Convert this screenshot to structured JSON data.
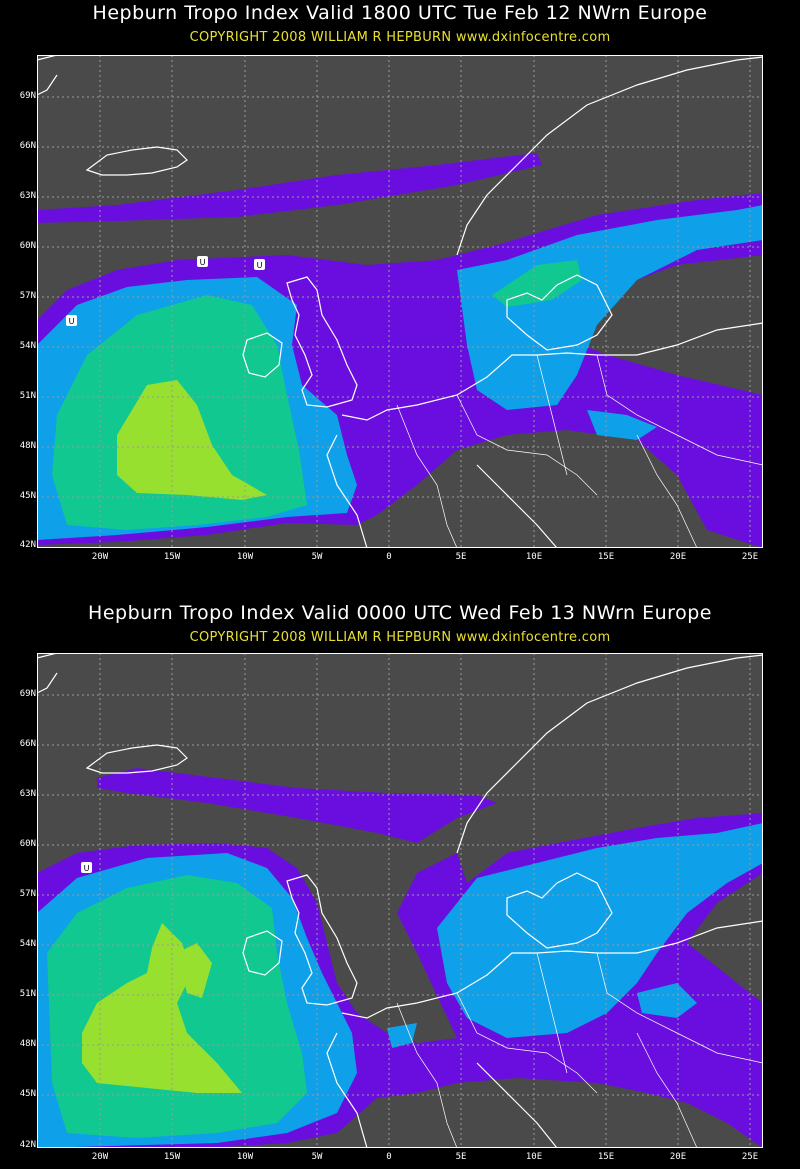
{
  "maps": [
    {
      "title": "Hepburn Tropo Index Valid 1800 UTC Tue Feb 12 NWrn Europe",
      "copyright": "COPYRIGHT 2008  WILLIAM R HEPBURN  www.dxinfocentre.com",
      "lat_labels": [
        "69N",
        "66N",
        "63N",
        "60N",
        "57N",
        "54N",
        "51N",
        "48N",
        "45N",
        "42N"
      ],
      "lon_labels": [
        "20W",
        "15W",
        "10W",
        "5W",
        "0",
        "5E",
        "10E",
        "15E",
        "20E",
        "25E"
      ],
      "markers": [
        "U",
        "U",
        "U"
      ]
    },
    {
      "title": "Hepburn Tropo Index Valid 0000 UTC Wed Feb 13 NWrn Europe",
      "copyright": "COPYRIGHT 2008  WILLIAM R HEPBURN  www.dxinfocentre.com",
      "lat_labels": [
        "69N",
        "66N",
        "63N",
        "60N",
        "57N",
        "54N",
        "51N",
        "48N",
        "45N",
        "42N"
      ],
      "lon_labels": [
        "20W",
        "15W",
        "10W",
        "5W",
        "0",
        "5E",
        "10E",
        "15E",
        "20E",
        "25E"
      ],
      "markers": [
        "U"
      ]
    }
  ],
  "colors": {
    "background": "#000000",
    "land_sea": "#4a4a4a",
    "level1": "#6a0ee0",
    "level2": "#0ea0e8",
    "level3": "#10c890",
    "level4": "#98e030",
    "coast": "#ffffff",
    "grid": "#9a9a9a",
    "title": "#ffffff",
    "copyright": "#e8e030"
  }
}
